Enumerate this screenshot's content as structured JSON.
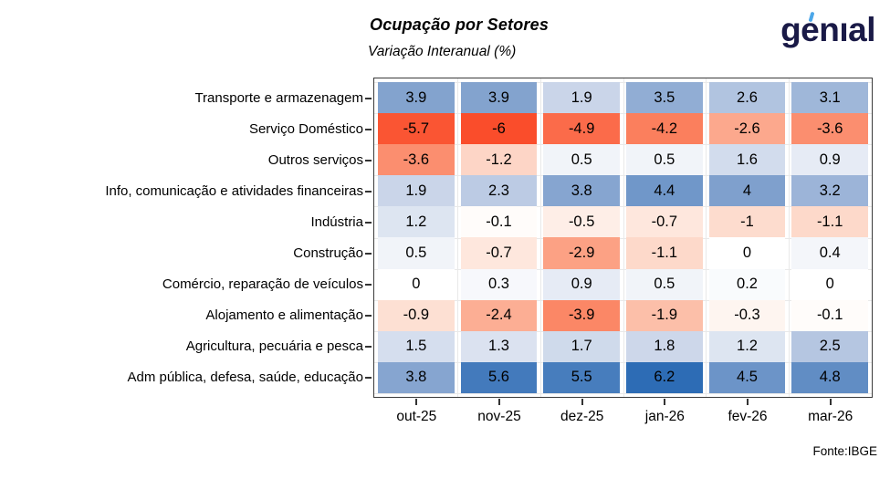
{
  "chart_data": {
    "type": "heatmap",
    "title": "Ocupação por Setores",
    "subtitle": "Variação Interanual (%)",
    "x_labels": [
      "out-25",
      "nov-25",
      "dez-25",
      "jan-26",
      "fev-26",
      "mar-26"
    ],
    "rows": [
      {
        "label": "Transporte e armazenagem",
        "values": [
          3.9,
          3.9,
          1.9,
          3.5,
          2.6,
          3.1
        ]
      },
      {
        "label": "Serviço Doméstico",
        "values": [
          -5.7,
          -6,
          -4.9,
          -4.2,
          -2.6,
          -3.6
        ]
      },
      {
        "label": "Outros serviços",
        "values": [
          -3.6,
          -1.2,
          0.5,
          0.5,
          1.6,
          0.9
        ]
      },
      {
        "label": "Info, comunicação e atividades financeiras",
        "values": [
          1.9,
          2.3,
          3.8,
          4.4,
          4,
          3.2
        ]
      },
      {
        "label": "Indústria",
        "values": [
          1.2,
          -0.1,
          -0.5,
          -0.7,
          -1,
          -1.1
        ]
      },
      {
        "label": "Construção",
        "values": [
          0.5,
          -0.7,
          -2.9,
          -1.1,
          0,
          0.4
        ]
      },
      {
        "label": "Comércio, reparação de veículos",
        "values": [
          0,
          0.3,
          0.9,
          0.5,
          0.2,
          0
        ]
      },
      {
        "label": "Alojamento e alimentação",
        "values": [
          -0.9,
          -2.4,
          -3.9,
          -1.9,
          -0.3,
          -0.1
        ]
      },
      {
        "label": "Agricultura, pecuária e pesca",
        "values": [
          1.5,
          1.3,
          1.7,
          1.8,
          1.2,
          2.5
        ]
      },
      {
        "label": "Adm pública, defesa, saúde, educação",
        "values": [
          3.8,
          5.6,
          5.5,
          6.2,
          4.5,
          4.8
        ]
      }
    ],
    "value_range": [
      -6,
      6.2
    ],
    "legend": "none",
    "grid": true,
    "colormap": {
      "type": "diverging",
      "center": 0,
      "positive_stops": [
        [
          0,
          "#FFFFFF"
        ],
        [
          2,
          "#C7D3E8"
        ],
        [
          4,
          "#7FA0CD"
        ],
        [
          6.2,
          "#2D6CB5"
        ]
      ],
      "negative_stops": [
        [
          0,
          "#FFFFFF"
        ],
        [
          -1,
          "#FDDCCE"
        ],
        [
          -2.5,
          "#FCAB90"
        ],
        [
          -4,
          "#FB8463"
        ],
        [
          -6,
          "#FA4D2B"
        ]
      ]
    }
  },
  "logo": {
    "text": "genial",
    "color": "#1A1A47",
    "accent_color": "#4CA7E9"
  },
  "footer": {
    "source": "Fonte:IBGE"
  }
}
